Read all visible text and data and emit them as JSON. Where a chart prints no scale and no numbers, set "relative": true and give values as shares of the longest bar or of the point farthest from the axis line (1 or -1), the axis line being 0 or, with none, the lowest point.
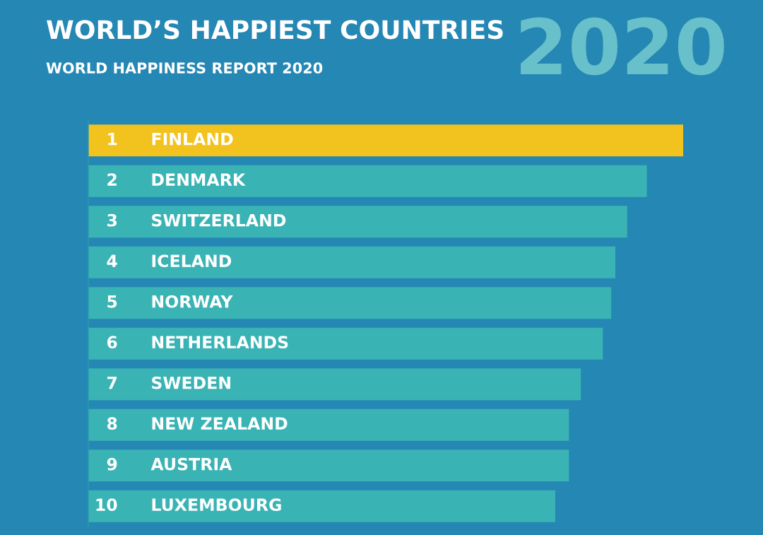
{
  "chart_data": {
    "type": "bar",
    "orientation": "horizontal",
    "relative": true,
    "title": "WORLD’S HAPPIEST COUNTRIES",
    "subtitle": "WORLD HAPPINESS REPORT 2020",
    "categories": [
      "FINLAND",
      "DENMARK",
      "SWITZERLAND",
      "ICELAND",
      "NORWAY",
      "NETHERLANDS",
      "SWEDEN",
      "NEW ZEALAND",
      "AUSTRIA",
      "LUXEMBOURG"
    ],
    "values": [
      1,
      0.939,
      0.906,
      0.886,
      0.879,
      0.865,
      0.828,
      0.808,
      0.808,
      0.785
    ],
    "colors": [
      "#f2c21e",
      "#3ab3b4",
      "#3ab3b4",
      "#3ab3b4",
      "#3ab3b4",
      "#3ab3b4",
      "#3ab3b4",
      "#3ab3b4",
      "#3ab3b4",
      "#3ab3b4"
    ],
    "annotations": [
      "2020",
      "1",
      "2",
      "3",
      "4",
      "5",
      "6",
      "7",
      "8",
      "9",
      "10"
    ],
    "legend": false
  }
}
